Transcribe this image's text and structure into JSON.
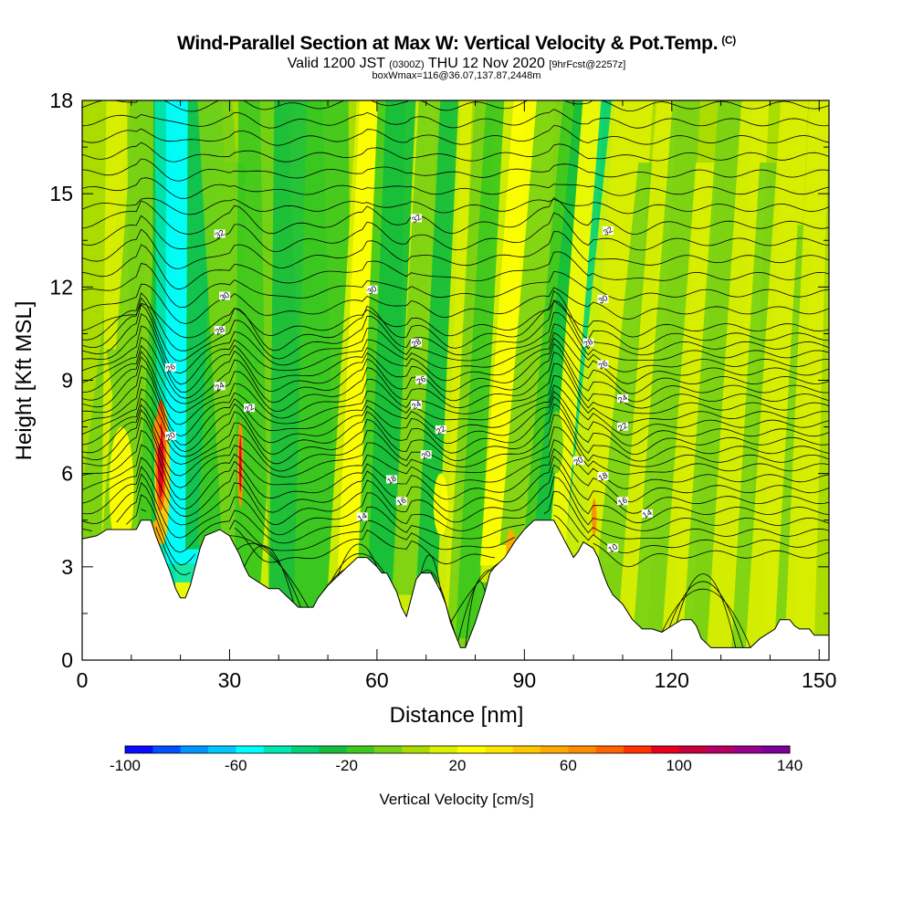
{
  "header": {
    "title": "Wind-Parallel Section at Max W: Vertical Velocity & Pot.Temp.",
    "copyright": "(C)",
    "valid_prefix": "Valid 1200 JST",
    "valid_utc": "(0300Z)",
    "valid_date": "THU 12 Nov 2020",
    "forecast": "[9hrFcst@2257z]",
    "box_info": "boxWmax=116@36.07,137.87,2448m"
  },
  "chart_data": {
    "type": "heatmap",
    "title": "Wind-Parallel Section at Max W: Vertical Velocity & Pot.Temp.",
    "xlabel": "Distance [nm]",
    "ylabel": "Height [Kft MSL]",
    "xlim": [
      0,
      152
    ],
    "ylim": [
      0,
      18
    ],
    "x_ticks": [
      "0",
      "30",
      "60",
      "90",
      "120",
      "150"
    ],
    "y_ticks": [
      "0",
      "3",
      "6",
      "9",
      "12",
      "15",
      "18"
    ],
    "colorbar": {
      "title": "Vertical Velocity [cm/s]",
      "range": [
        -100,
        140
      ],
      "labels": [
        "-100",
        "-60",
        "-20",
        "20",
        "60",
        "100",
        "140"
      ],
      "colors": [
        "#0a0aff",
        "#0050ff",
        "#0096ff",
        "#00c8ff",
        "#00ffff",
        "#00e6b4",
        "#00d278",
        "#14be3c",
        "#3cc81e",
        "#78d214",
        "#aadc00",
        "#dcf000",
        "#ffff00",
        "#ffe600",
        "#ffc800",
        "#ffaa00",
        "#ff8c00",
        "#ff6400",
        "#ff3200",
        "#e6001e",
        "#c8003c",
        "#b40064",
        "#96008c",
        "#780096"
      ]
    },
    "terrain_kft": [
      [
        0,
        3.9
      ],
      [
        3,
        4.0
      ],
      [
        5,
        4.2
      ],
      [
        11,
        4.2
      ],
      [
        12,
        4.5
      ],
      [
        14,
        4.5
      ],
      [
        15,
        4.0
      ],
      [
        16,
        3.6
      ],
      [
        17,
        3.2
      ],
      [
        18,
        2.8
      ],
      [
        19,
        2.3
      ],
      [
        20,
        2.0
      ],
      [
        21,
        2.0
      ],
      [
        22,
        2.4
      ],
      [
        23,
        3.0
      ],
      [
        24,
        3.6
      ],
      [
        25,
        4.0
      ],
      [
        28,
        4.2
      ],
      [
        30,
        4.0
      ],
      [
        31,
        3.7
      ],
      [
        32,
        3.4
      ],
      [
        33,
        3.0
      ],
      [
        34,
        2.7
      ],
      [
        36,
        2.5
      ],
      [
        38,
        2.3
      ],
      [
        40,
        2.3
      ],
      [
        42,
        2.0
      ],
      [
        44,
        1.7
      ],
      [
        47,
        1.7
      ],
      [
        48,
        2.0
      ],
      [
        50,
        2.4
      ],
      [
        52,
        2.7
      ],
      [
        54,
        3.0
      ],
      [
        56,
        3.3
      ],
      [
        58,
        3.3
      ],
      [
        60,
        3.0
      ],
      [
        61,
        2.8
      ],
      [
        62,
        2.8
      ],
      [
        63,
        2.5
      ],
      [
        64,
        2.2
      ],
      [
        65,
        1.7
      ],
      [
        66,
        1.4
      ],
      [
        67,
        2.0
      ],
      [
        68,
        2.6
      ],
      [
        69,
        2.8
      ],
      [
        71,
        2.8
      ],
      [
        72,
        2.5
      ],
      [
        73,
        2.2
      ],
      [
        74,
        1.8
      ],
      [
        75,
        1.2
      ],
      [
        76,
        0.8
      ],
      [
        77,
        0.4
      ],
      [
        78,
        0.4
      ],
      [
        79,
        0.8
      ],
      [
        80,
        1.2
      ],
      [
        81,
        1.7
      ],
      [
        82,
        2.2
      ],
      [
        83,
        2.8
      ],
      [
        84,
        3.0
      ],
      [
        86,
        3.3
      ],
      [
        88,
        3.8
      ],
      [
        90,
        4.2
      ],
      [
        92,
        4.5
      ],
      [
        96,
        4.5
      ],
      [
        98,
        3.9
      ],
      [
        99,
        3.6
      ],
      [
        100,
        3.3
      ],
      [
        101,
        3.5
      ],
      [
        102,
        3.8
      ],
      [
        104,
        3.6
      ],
      [
        105,
        3.3
      ],
      [
        106,
        2.8
      ],
      [
        107,
        2.4
      ],
      [
        108,
        2.1
      ],
      [
        110,
        1.8
      ],
      [
        112,
        1.3
      ],
      [
        114,
        1.0
      ],
      [
        116,
        1.0
      ],
      [
        118,
        0.9
      ],
      [
        120,
        1.1
      ],
      [
        122,
        1.3
      ],
      [
        124,
        1.3
      ],
      [
        125,
        1.1
      ],
      [
        126,
        0.7
      ],
      [
        128,
        0.4
      ],
      [
        132,
        0.4
      ],
      [
        136,
        0.4
      ],
      [
        138,
        0.7
      ],
      [
        140,
        0.9
      ],
      [
        141,
        1.0
      ],
      [
        142,
        1.3
      ],
      [
        144,
        1.3
      ],
      [
        145,
        1.1
      ],
      [
        146,
        1.0
      ],
      [
        148,
        1.0
      ],
      [
        149,
        0.8
      ],
      [
        150,
        0.8
      ],
      [
        152,
        0.8
      ]
    ],
    "theta_labels": [
      {
        "text": "32",
        "x": 28,
        "y": 13.7
      },
      {
        "text": "32",
        "x": 68,
        "y": 14.2
      },
      {
        "text": "32",
        "x": 107,
        "y": 13.8
      },
      {
        "text": "30",
        "x": 29,
        "y": 11.7
      },
      {
        "text": "30",
        "x": 59,
        "y": 11.9
      },
      {
        "text": "30",
        "x": 106,
        "y": 11.6
      },
      {
        "text": "28",
        "x": 28,
        "y": 10.6
      },
      {
        "text": "28",
        "x": 68,
        "y": 10.2
      },
      {
        "text": "28",
        "x": 103,
        "y": 10.2
      },
      {
        "text": "26",
        "x": 18,
        "y": 9.4
      },
      {
        "text": "26",
        "x": 69,
        "y": 9.0
      },
      {
        "text": "26",
        "x": 106,
        "y": 9.5
      },
      {
        "text": "24",
        "x": 28,
        "y": 8.8
      },
      {
        "text": "24",
        "x": 68,
        "y": 8.2
      },
      {
        "text": "24",
        "x": 110,
        "y": 8.4
      },
      {
        "text": "22",
        "x": 34,
        "y": 8.1
      },
      {
        "text": "22",
        "x": 73,
        "y": 7.4
      },
      {
        "text": "22",
        "x": 110,
        "y": 7.5
      },
      {
        "text": "20",
        "x": 18,
        "y": 7.2
      },
      {
        "text": "20",
        "x": 70,
        "y": 6.6
      },
      {
        "text": "20",
        "x": 101,
        "y": 6.4
      },
      {
        "text": "18",
        "x": 63,
        "y": 5.8
      },
      {
        "text": "18",
        "x": 106,
        "y": 5.9
      },
      {
        "text": "16",
        "x": 65,
        "y": 5.1
      },
      {
        "text": "16",
        "x": 110,
        "y": 5.1
      },
      {
        "text": "14",
        "x": 57,
        "y": 4.6
      },
      {
        "text": "14",
        "x": 115,
        "y": 4.7
      },
      {
        "text": "10",
        "x": 108,
        "y": 3.6
      }
    ]
  }
}
